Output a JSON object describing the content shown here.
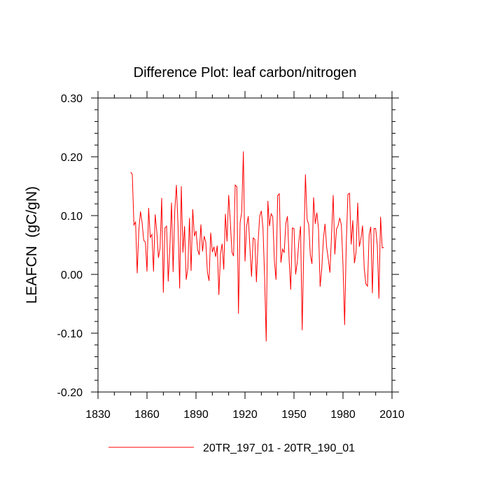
{
  "chart_data": {
    "type": "line",
    "title": "Difference Plot: leaf carbon/nitrogen",
    "xlabel": "",
    "ylabel": "LEAFCN  (gC/gN)",
    "xlim": [
      1830,
      2010
    ],
    "ylim": [
      -0.2,
      0.3
    ],
    "xticks": [
      1830,
      1860,
      1890,
      1920,
      1950,
      1980,
      2010
    ],
    "xtick_labels": [
      "1830",
      "1860",
      "1890",
      "1920",
      "1950",
      "1980",
      "2010"
    ],
    "yticks": [
      -0.2,
      -0.1,
      0.0,
      0.1,
      0.2,
      0.3
    ],
    "ytick_labels": [
      "-0.20",
      "-0.10",
      "0.00",
      "0.10",
      "0.20",
      "0.30"
    ],
    "grid": false,
    "legend_position": "bottom-center",
    "series": [
      {
        "name": "20TR_197_01 - 20TR_190_01",
        "color": "#ff0000",
        "x": [
          1850,
          1851,
          1852,
          1853,
          1854,
          1855,
          1856,
          1857,
          1858,
          1859,
          1860,
          1861,
          1862,
          1863,
          1864,
          1865,
          1866,
          1867,
          1868,
          1869,
          1870,
          1871,
          1872,
          1873,
          1874,
          1875,
          1876,
          1877,
          1878,
          1879,
          1880,
          1881,
          1882,
          1883,
          1884,
          1885,
          1886,
          1887,
          1888,
          1889,
          1890,
          1891,
          1892,
          1893,
          1894,
          1895,
          1896,
          1897,
          1898,
          1899,
          1900,
          1901,
          1902,
          1903,
          1904,
          1905,
          1906,
          1907,
          1908,
          1909,
          1910,
          1911,
          1912,
          1913,
          1914,
          1915,
          1916,
          1917,
          1918,
          1919,
          1920,
          1921,
          1922,
          1923,
          1924,
          1925,
          1926,
          1927,
          1928,
          1929,
          1930,
          1931,
          1932,
          1933,
          1934,
          1935,
          1936,
          1937,
          1938,
          1939,
          1940,
          1941,
          1942,
          1943,
          1944,
          1945,
          1946,
          1947,
          1948,
          1949,
          1950,
          1951,
          1952,
          1953,
          1954,
          1955,
          1956,
          1957,
          1958,
          1959,
          1960,
          1961,
          1962,
          1963,
          1964,
          1965,
          1966,
          1967,
          1968,
          1969,
          1970,
          1971,
          1972,
          1973,
          1974,
          1975,
          1976,
          1977,
          1978,
          1979,
          1980,
          1981,
          1982,
          1983,
          1984,
          1985,
          1986,
          1987,
          1988,
          1989,
          1990,
          1991,
          1992,
          1993,
          1994,
          1995,
          1996,
          1997,
          1998,
          1999,
          2000,
          2001,
          2002,
          2003,
          2004,
          2005
        ],
        "values": [
          0.174,
          0.17,
          0.084,
          0.089,
          0.002,
          0.075,
          0.107,
          0.088,
          0.058,
          0.055,
          0.005,
          0.113,
          0.063,
          0.068,
          0.005,
          0.102,
          0.073,
          0.028,
          0.045,
          0.13,
          -0.031,
          0.079,
          0.082,
          -0.012,
          0.045,
          0.122,
          0.004,
          0.108,
          0.152,
          0.083,
          -0.024,
          0.15,
          0.037,
          0.082,
          -0.009,
          0.01,
          0.096,
          0.006,
          0.111,
          0.065,
          0.074,
          0.042,
          0.033,
          0.085,
          0.039,
          0.065,
          0.055,
          0.003,
          -0.011,
          0.071,
          0.038,
          0.047,
          0.03,
          0.049,
          -0.035,
          0.035,
          0.052,
          0.008,
          0.103,
          0.056,
          0.135,
          0.09,
          0.038,
          0.031,
          0.152,
          0.149,
          -0.067,
          0.088,
          0.106,
          0.209,
          0.022,
          0.082,
          0.099,
          0.046,
          -0.004,
          0.062,
          0.06,
          -0.013,
          0.054,
          0.099,
          0.108,
          0.079,
          -0.004,
          -0.114,
          0.125,
          0.082,
          0.103,
          0.098,
          0.022,
          -0.009,
          0.134,
          0.137,
          0.02,
          0.043,
          0.037,
          0.087,
          0.099,
          0.026,
          -0.026,
          0.079,
          0.078,
          0.0,
          0.021,
          0.057,
          0.082,
          -0.095,
          0.045,
          0.17,
          0.094,
          0.085,
          0.033,
          0.018,
          0.131,
          0.086,
          0.105,
          0.078,
          -0.021,
          0.01,
          0.06,
          0.086,
          0.046,
          0.026,
          0.003,
          0.068,
          0.135,
          0.034,
          0.077,
          0.083,
          0.096,
          0.084,
          0.016,
          -0.086,
          0.052,
          0.136,
          0.138,
          0.051,
          0.092,
          0.019,
          0.038,
          0.122,
          0.047,
          0.061,
          0.083,
          0.01,
          -0.016,
          -0.02,
          0.067,
          0.081,
          -0.032,
          0.078,
          0.078,
          0.049,
          -0.041,
          0.098,
          0.045,
          0.046
        ]
      }
    ]
  }
}
